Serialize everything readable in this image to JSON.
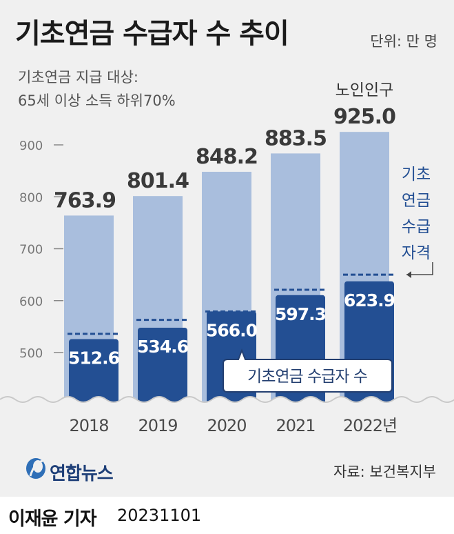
{
  "header": {
    "title": "기초연금 수급자 수 추이",
    "unit": "단위: 만 명",
    "subtitle_line1": "기초연금 지급 대상:",
    "subtitle_line2": "65세 이상 소득 하위70%"
  },
  "chart_data": {
    "type": "bar",
    "categories": [
      "2018",
      "2019",
      "2020",
      "2021",
      "2022년"
    ],
    "series": [
      {
        "name": "노인인구",
        "values": [
          763.9,
          801.4,
          848.2,
          883.5,
          925.0
        ],
        "color": "#a9bedd"
      },
      {
        "name": "기초연금 수급자 수",
        "values": [
          512.6,
          534.6,
          566.0,
          597.3,
          623.9
        ],
        "color": "#234f93"
      },
      {
        "name": "기초연금 수급자격",
        "values": [
          536,
          563,
          579,
          621,
          650
        ],
        "color": "#234f93"
      }
    ],
    "value_labels_light": [
      "763.9",
      "801.4",
      "848.2",
      "883.5",
      "925.0"
    ],
    "value_labels_dark": [
      "512.6",
      "534.6",
      "566.0",
      "597.3",
      "623.9"
    ],
    "y_ticks": [
      "500",
      "600",
      "700",
      "800",
      "900"
    ],
    "y_tick_values": [
      500,
      600,
      700,
      800,
      900
    ],
    "ylim": [
      420,
      960
    ],
    "xlabel": "",
    "ylabel": "",
    "annotations": {
      "population_label": "노인인구",
      "recipients_label": "기초연금 수급자 수",
      "eligibility_label": [
        "기초",
        "연금",
        "수급",
        "자격"
      ]
    }
  },
  "footer": {
    "logo_text": "연합뉴스",
    "source": "자료: 보건복지부",
    "byline": "이재윤 기자",
    "date": "20231101"
  },
  "colors": {
    "background": "#f0f0f0",
    "light_bar": "#a9bedd",
    "dark_bar": "#234f93",
    "text": "#1b1b1b"
  }
}
